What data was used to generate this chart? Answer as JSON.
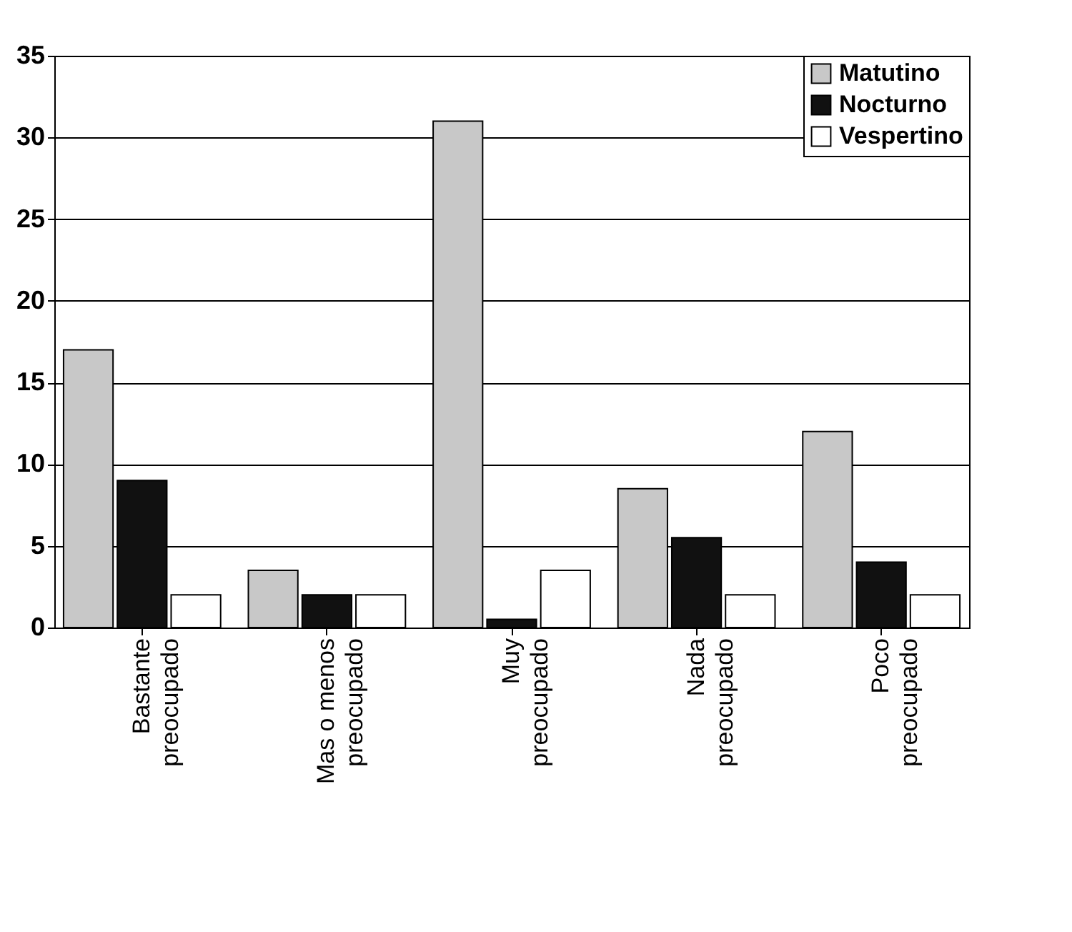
{
  "chart_data": {
    "type": "bar",
    "categories": [
      "Bastante preocupado",
      "Mas o menos preocupado",
      "Muy preocupado",
      "Nada preocupado",
      "Poco preocupado"
    ],
    "series": [
      {
        "name": "Matutino",
        "color": "#c8c8c8",
        "values": [
          17,
          3.5,
          31,
          8.5,
          12
        ]
      },
      {
        "name": "Nocturno",
        "color": "#111111",
        "values": [
          9,
          2,
          0.5,
          5.5,
          4
        ]
      },
      {
        "name": "Vespertino",
        "color": "#ffffff",
        "values": [
          2,
          2,
          3.5,
          2,
          2
        ]
      }
    ],
    "ylim": [
      0,
      35
    ],
    "yticks": [
      0,
      5,
      10,
      15,
      20,
      25,
      30,
      35
    ],
    "grid": "y",
    "legend": "top right"
  }
}
